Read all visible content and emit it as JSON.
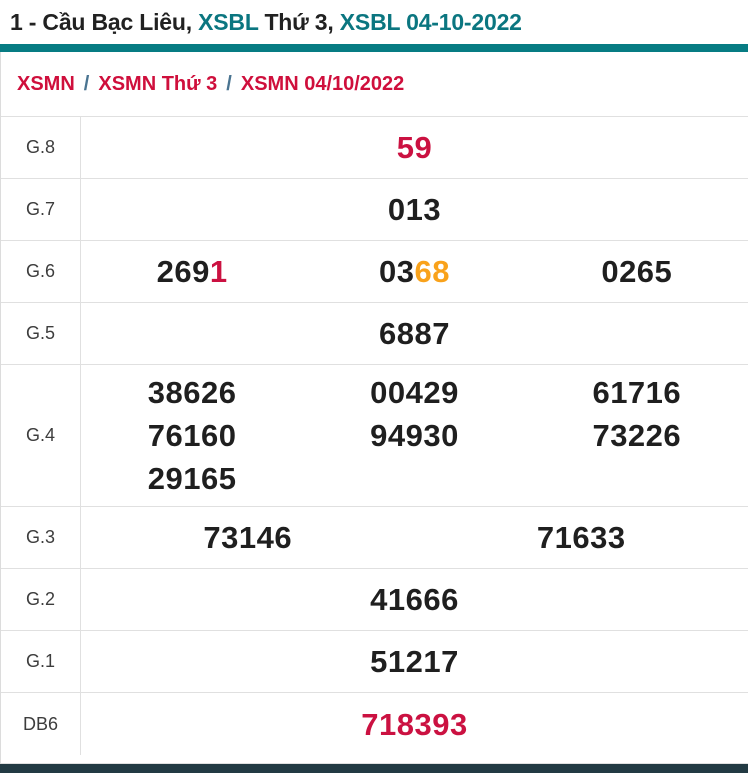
{
  "colors": {
    "teal_accent": "#077c83",
    "teal_link": "#0b7680",
    "red": "#cb1141",
    "orange": "#f9a21b",
    "black_number": "#1f1f1f",
    "breadcrumb_red": "#cf0f3c",
    "breadcrumb_separator": "#4a7491",
    "bottom_bar": "#223a43",
    "border": "#e0e0e0"
  },
  "header": {
    "segments": [
      {
        "text": "1 - Cầu Bạc Liêu, ",
        "color": "dark"
      },
      {
        "text": "XSBL ",
        "color": "teal"
      },
      {
        "text": "Thứ 3, ",
        "color": "dark"
      },
      {
        "text": "XSBL 04-10-2022",
        "color": "teal"
      }
    ]
  },
  "breadcrumb": {
    "separator": "/",
    "items": [
      {
        "label": "XSMN"
      },
      {
        "label": "XSMN Thứ 3"
      },
      {
        "label": "XSMN 04/10/2022"
      }
    ]
  },
  "results_table": {
    "rows": [
      {
        "label": "G.8",
        "lines": [
          [
            {
              "segments": [
                {
                  "text": "59",
                  "color": "red"
                }
              ]
            }
          ]
        ]
      },
      {
        "label": "G.7",
        "lines": [
          [
            {
              "segments": [
                {
                  "text": "013"
                }
              ]
            }
          ]
        ]
      },
      {
        "label": "G.6",
        "lines": [
          [
            {
              "segments": [
                {
                  "text": "269"
                },
                {
                  "text": "1",
                  "color": "red"
                }
              ]
            },
            {
              "segments": [
                {
                  "text": "03"
                },
                {
                  "text": "68",
                  "color": "orange"
                }
              ]
            },
            {
              "segments": [
                {
                  "text": "0265"
                }
              ]
            }
          ]
        ]
      },
      {
        "label": "G.5",
        "lines": [
          [
            {
              "segments": [
                {
                  "text": "6887"
                }
              ]
            }
          ]
        ]
      },
      {
        "label": "G.4",
        "lines": [
          [
            {
              "segments": [
                {
                  "text": "38626"
                }
              ]
            },
            {
              "segments": [
                {
                  "text": "00429"
                }
              ]
            },
            {
              "segments": [
                {
                  "text": "61716"
                }
              ]
            }
          ],
          [
            {
              "segments": [
                {
                  "text": "76160"
                }
              ]
            },
            {
              "segments": [
                {
                  "text": "94930"
                }
              ]
            },
            {
              "segments": [
                {
                  "text": "73226"
                }
              ]
            }
          ],
          [
            {
              "segments": [
                {
                  "text": "29165"
                }
              ]
            },
            {
              "segments": []
            },
            {
              "segments": []
            }
          ]
        ]
      },
      {
        "label": "G.3",
        "lines": [
          [
            {
              "segments": [
                {
                  "text": "73146"
                }
              ]
            },
            {
              "segments": [
                {
                  "text": "71633"
                }
              ]
            }
          ]
        ]
      },
      {
        "label": "G.2",
        "lines": [
          [
            {
              "segments": [
                {
                  "text": "41666"
                }
              ]
            }
          ]
        ]
      },
      {
        "label": "G.1",
        "lines": [
          [
            {
              "segments": [
                {
                  "text": "51217"
                }
              ]
            }
          ]
        ]
      },
      {
        "label": "DB6",
        "lines": [
          [
            {
              "segments": [
                {
                  "text": "718393",
                  "color": "red"
                }
              ]
            }
          ]
        ]
      }
    ]
  }
}
